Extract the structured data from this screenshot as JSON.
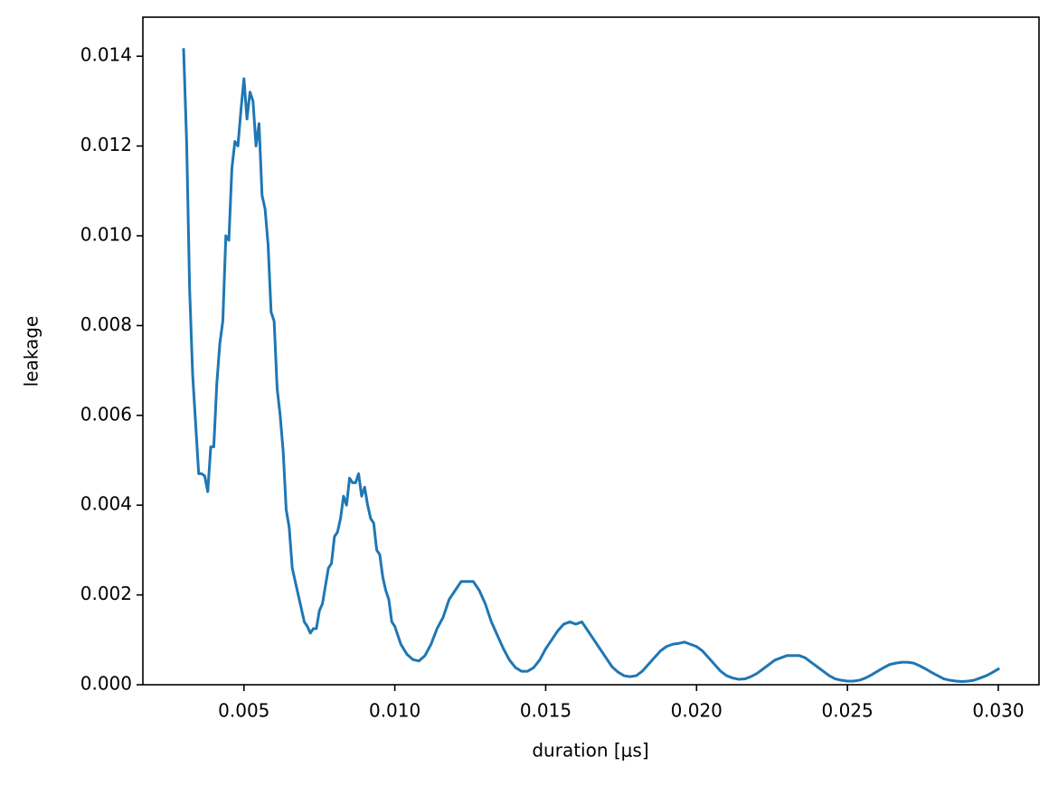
{
  "chart_data": {
    "type": "line",
    "x_label": "duration [μs]",
    "y_label": "leakage",
    "color": "#1f77b4",
    "xlim": [
      0.00165,
      0.03135
    ],
    "ylim": [
      0,
      0.01487
    ],
    "xticks": [
      0.005,
      {
        "value": 0.01,
        "label": "0.010"
      },
      0.015,
      {
        "value": 0.02,
        "label": "0.020"
      },
      0.025,
      {
        "value": 0.03,
        "label": "0.030"
      }
    ],
    "yticks": [
      {
        "value": 0,
        "label": "0.000"
      },
      0.002,
      0.004,
      0.006,
      0.008,
      {
        "value": 0.01,
        "label": "0.010"
      },
      0.012,
      0.014
    ],
    "x": [
      0.003,
      0.0031,
      0.0032,
      0.0033,
      0.0034,
      0.0035,
      0.0036,
      0.0037,
      0.0038,
      0.0039,
      0.004,
      0.0041,
      0.0042,
      0.0043,
      0.0044,
      0.0045,
      0.0046,
      0.0047,
      0.0048,
      0.0049,
      0.005,
      0.0051,
      0.0052,
      0.0053,
      0.0054,
      0.0055,
      0.0056,
      0.0057,
      0.0058,
      0.0059,
      0.006,
      0.0061,
      0.0062,
      0.0063,
      0.0064,
      0.0065,
      0.0066,
      0.0067,
      0.0068,
      0.0069,
      0.007,
      0.0071,
      0.0072,
      0.0073,
      0.0074,
      0.0075,
      0.0076,
      0.0077,
      0.0078,
      0.0079,
      0.008,
      0.0081,
      0.0082,
      0.0083,
      0.0084,
      0.0085,
      0.0086,
      0.0087,
      0.0088,
      0.0089,
      0.009,
      0.0091,
      0.0092,
      0.0093,
      0.0094,
      0.0095,
      0.0096,
      0.0097,
      0.0098,
      0.0099,
      0.01,
      0.0102,
      0.0104,
      0.0106,
      0.0108,
      0.011,
      0.0112,
      0.0114,
      0.0116,
      0.0118,
      0.012,
      0.0122,
      0.0124,
      0.0126,
      0.0128,
      0.013,
      0.0132,
      0.0134,
      0.0136,
      0.0138,
      0.014,
      0.0142,
      0.0144,
      0.0146,
      0.0148,
      0.015,
      0.0152,
      0.0154,
      0.0156,
      0.0158,
      0.016,
      0.0162,
      0.0164,
      0.0166,
      0.0168,
      0.017,
      0.0172,
      0.0174,
      0.0176,
      0.0178,
      0.018,
      0.0182,
      0.0184,
      0.0186,
      0.0188,
      0.019,
      0.0192,
      0.0194,
      0.0196,
      0.0198,
      0.02,
      0.0202,
      0.0204,
      0.0206,
      0.0208,
      0.021,
      0.0212,
      0.0214,
      0.0216,
      0.0218,
      0.022,
      0.0222,
      0.0224,
      0.0226,
      0.0228,
      0.023,
      0.0232,
      0.0234,
      0.0236,
      0.0238,
      0.024,
      0.0242,
      0.0244,
      0.0246,
      0.0248,
      0.025,
      0.0252,
      0.0254,
      0.0256,
      0.0258,
      0.026,
      0.0262,
      0.0264,
      0.0266,
      0.0268,
      0.027,
      0.0272,
      0.0274,
      0.0276,
      0.0278,
      0.028,
      0.0282,
      0.0284,
      0.0286,
      0.0288,
      0.029,
      0.0292,
      0.0294,
      0.0296,
      0.0298,
      0.03
    ],
    "values": [
      0.01415,
      0.0121,
      0.0088,
      0.0069,
      0.0058,
      0.0047,
      0.0047,
      0.00465,
      0.0043,
      0.0053,
      0.0053,
      0.0067,
      0.0076,
      0.0081,
      0.01,
      0.0099,
      0.0115,
      0.0121,
      0.012,
      0.0128,
      0.0135,
      0.0126,
      0.0132,
      0.013,
      0.012,
      0.0125,
      0.0109,
      0.0106,
      0.0098,
      0.0083,
      0.0081,
      0.0066,
      0.006,
      0.0052,
      0.0039,
      0.0035,
      0.0026,
      0.0023,
      0.002,
      0.0017,
      0.0014,
      0.0013,
      0.00115,
      0.00125,
      0.00125,
      0.00165,
      0.0018,
      0.0022,
      0.0026,
      0.0027,
      0.0033,
      0.0034,
      0.0037,
      0.0042,
      0.004,
      0.0046,
      0.0045,
      0.0045,
      0.0047,
      0.0042,
      0.0044,
      0.004,
      0.0037,
      0.0036,
      0.003,
      0.0029,
      0.0024,
      0.0021,
      0.0019,
      0.0014,
      0.0013,
      0.0009,
      0.00068,
      0.00056,
      0.00053,
      0.00065,
      0.0009,
      0.00125,
      0.0015,
      0.0019,
      0.0021,
      0.0023,
      0.0023,
      0.0023,
      0.0021,
      0.0018,
      0.0014,
      0.0011,
      0.0008,
      0.00055,
      0.00038,
      0.0003,
      0.0003,
      0.00038,
      0.00055,
      0.0008,
      0.001,
      0.0012,
      0.00135,
      0.0014,
      0.00135,
      0.0014,
      0.0012,
      0.001,
      0.0008,
      0.0006,
      0.0004,
      0.00028,
      0.0002,
      0.00018,
      0.0002,
      0.0003,
      0.00045,
      0.0006,
      0.00075,
      0.00085,
      0.0009,
      0.00092,
      0.00095,
      0.0009,
      0.00085,
      0.00075,
      0.0006,
      0.00045,
      0.0003,
      0.0002,
      0.00015,
      0.00012,
      0.00013,
      0.00018,
      0.00025,
      0.00035,
      0.00045,
      0.00055,
      0.0006,
      0.00065,
      0.00065,
      0.00065,
      0.0006,
      0.0005,
      0.0004,
      0.0003,
      0.0002,
      0.00013,
      0.0001,
      8e-05,
      8e-05,
      0.0001,
      0.00015,
      0.00022,
      0.0003,
      0.00038,
      0.00045,
      0.00048,
      0.0005,
      0.0005,
      0.00048,
      0.00042,
      0.00035,
      0.00027,
      0.0002,
      0.00013,
      0.0001,
      8e-05,
      7e-05,
      8e-05,
      0.0001,
      0.00015,
      0.0002,
      0.00027,
      0.00035
    ]
  }
}
